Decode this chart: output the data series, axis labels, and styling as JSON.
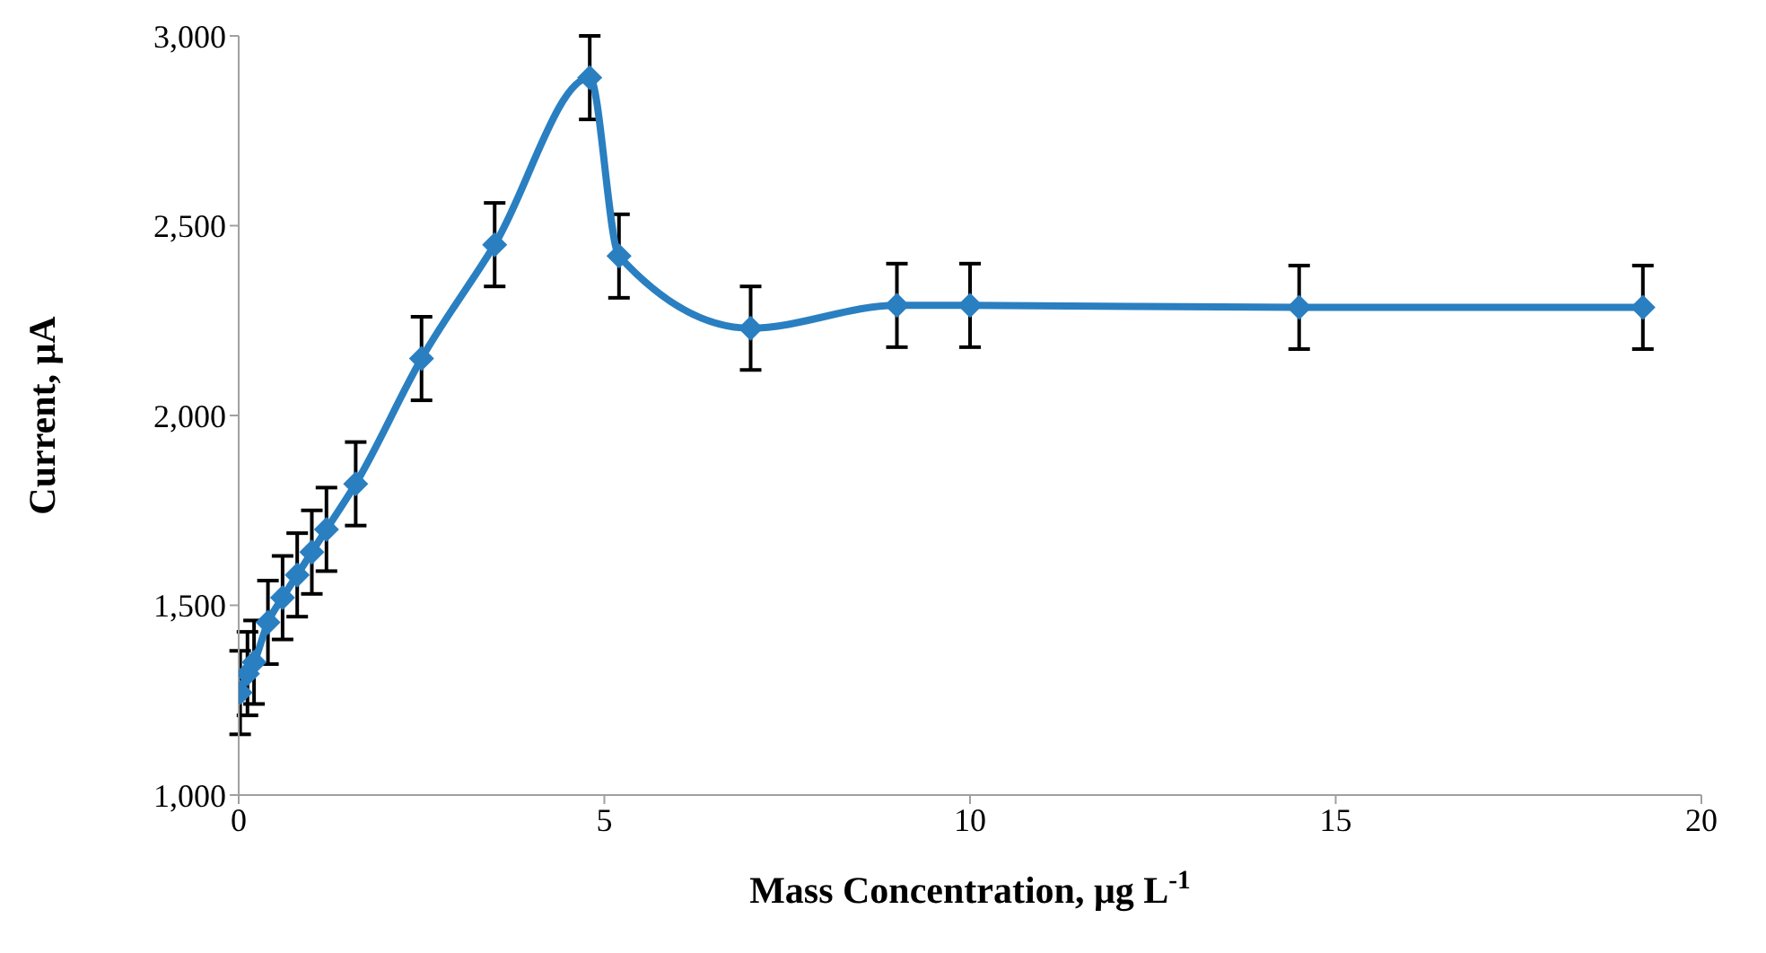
{
  "chart_data": {
    "type": "line",
    "xlabel": "Mass Concentration, μg L$^{-1}$",
    "ylabel": "Current, μA",
    "x": [
      0.02,
      0.12,
      0.21,
      0.4,
      0.6,
      0.8,
      1.0,
      1.2,
      1.6,
      2.5,
      3.5,
      4.8,
      5.2,
      7,
      9,
      10,
      14.5,
      19.2
    ],
    "series": [
      {
        "color": "#2a7fc1",
        "values": [
          1270,
          1320,
          1350,
          1455,
          1520,
          1580,
          1640,
          1700,
          1820,
          2150,
          2450,
          2890,
          2420,
          2230,
          2290,
          2290,
          2285,
          2285
        ],
        "errors": [
          110,
          110,
          110,
          110,
          110,
          110,
          110,
          110,
          110,
          110,
          110,
          110,
          110,
          110,
          110,
          110,
          110,
          110
        ]
      }
    ],
    "xlim": [
      0,
      20
    ],
    "xticks": [
      0,
      5,
      10,
      15,
      20
    ],
    "ylim": [
      1000,
      3000
    ],
    "yticks": [
      {
        "value": 1000,
        "label": "1,000"
      },
      {
        "value": 1500,
        "label": "1,500"
      },
      {
        "value": 2000,
        "label": "2,000"
      },
      {
        "value": 2500,
        "label": "2,500"
      },
      {
        "value": 3000,
        "label": "3,000"
      }
    ],
    "grid": false,
    "legend": false,
    "marker": "diamond",
    "line_style": "solid"
  }
}
